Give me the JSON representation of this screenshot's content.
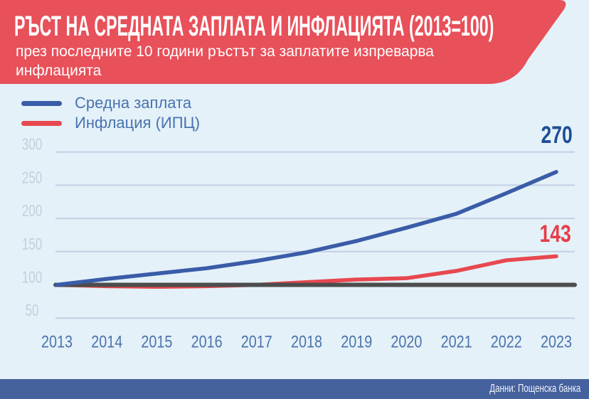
{
  "header": {
    "title": "РЪСТ НА СРЕДНАТА ЗАПЛАТА И ИНФЛАЦИЯТА (2013=100)",
    "subtitle_line1": "през последните 10 години ръстът за заплатите изпреварва",
    "subtitle_line2": "инфлацията"
  },
  "legend": {
    "items": [
      {
        "label": "Средна заплата",
        "color": "#3A5CA8"
      },
      {
        "label": "Инфлация (ИПЦ)",
        "color": "#E84850"
      }
    ]
  },
  "footer": {
    "source": "Данни: Пощенска банка"
  },
  "colors": {
    "header_red": "#E8505A",
    "background": "#E4F1F8",
    "grid": "#C3D0E5",
    "y_tick_label": "#C6CEDB",
    "x_tick_label": "#4C73AD",
    "legend_text": "#4973B0",
    "wage_line": "#3A5CA8",
    "wage_label": "#1D4F97",
    "cpi_line": "#E84850",
    "cpi_label": "#E63D47",
    "baseline": "#4D4D4D",
    "footer_bg": "#45619E",
    "text_white": "#FFFFFF"
  },
  "chart_data": {
    "type": "line",
    "title": "РЪСТ НА СРЕДНАТА ЗАПЛАТА И ИНФЛАЦИЯТА (2013=100)",
    "categories": [
      "2013",
      "2014",
      "2015",
      "2016",
      "2017",
      "2018",
      "2019",
      "2020",
      "2021",
      "2022",
      "2023"
    ],
    "series": [
      {
        "name": "Средна заплата",
        "color": "#3A5CA8",
        "values": [
          100,
          109,
          117,
          125,
          136,
          149,
          166,
          186,
          207,
          238,
          270
        ],
        "end_label": "270",
        "end_label_color": "#1D4F97"
      },
      {
        "name": "Инфлация (ИПЦ)",
        "color": "#E84850",
        "values": [
          100,
          98,
          97,
          98,
          100,
          104,
          108,
          110,
          121,
          137,
          143
        ],
        "end_label": "143",
        "end_label_color": "#E63D47"
      }
    ],
    "baseline": {
      "value": 100,
      "color": "#4D4D4D"
    },
    "y_ticks": [
      300,
      250,
      200,
      150,
      100,
      50
    ],
    "ylim": [
      50,
      310
    ],
    "xlabel": "",
    "ylabel": "",
    "grid": "horizontal",
    "legend_position": "top-left"
  }
}
